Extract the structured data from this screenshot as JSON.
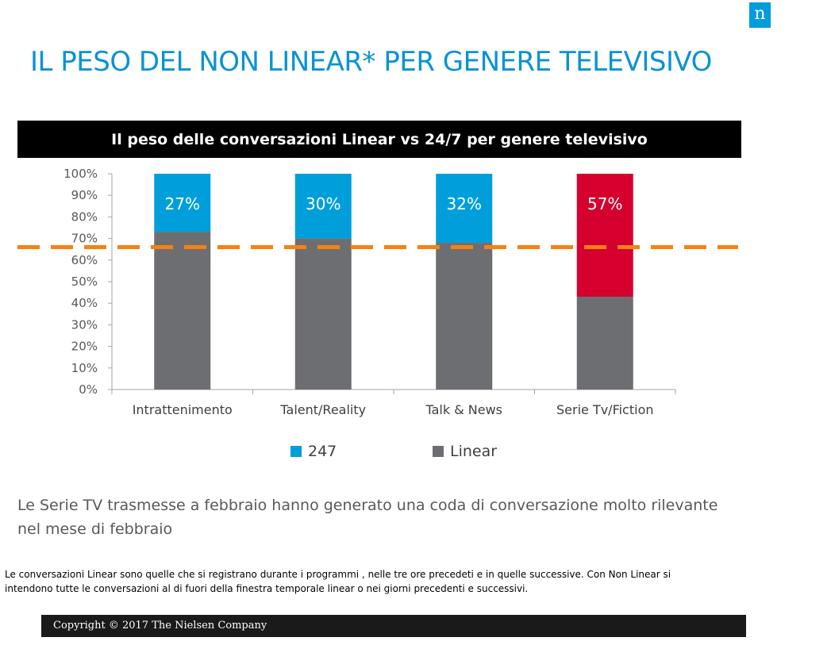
{
  "page": {
    "title": "IL PESO DEL NON LINEAR* PER GENERE TELEVISIVO",
    "logo_text": "n",
    "chart_header": "Il peso delle conversazioni Linear vs 24/7 per genere televisivo",
    "note": "Le Serie TV trasmesse a febbraio hanno generato una coda di conversazione molto rilevante  nel mese di febbraio",
    "footnote": "Le conversazioni Linear sono quelle che si registrano durante i programmi , nelle tre ore precedeti e in quelle successive. Con Non Linear si intendono tutte le conversazioni al di fuori della finestra temporale linear o nei giorni precedenti e successivi.",
    "footer": "Copyright © 2017 The Nielsen Company"
  },
  "colors": {
    "title": "#0a93d3",
    "series_247": "#009fdb",
    "series_247_highlight": "#d6002f",
    "series_linear": "#6d6e71",
    "reference_line": "#f7820f"
  },
  "chart_data": {
    "type": "bar",
    "stacked": true,
    "categories": [
      "Intrattenimento",
      "Talent/Reality",
      "Talk & News",
      "Serie Tv/Fiction"
    ],
    "series": [
      {
        "name": "Linear",
        "values": [
          73,
          70,
          68,
          43
        ]
      },
      {
        "name": "247",
        "values": [
          27,
          30,
          32,
          57
        ]
      }
    ],
    "data_labels": [
      "27%",
      "30%",
      "32%",
      "57%"
    ],
    "ylim": [
      0,
      100
    ],
    "yticks": [
      "0%",
      "10%",
      "20%",
      "30%",
      "40%",
      "50%",
      "60%",
      "70%",
      "80%",
      "90%",
      "100%"
    ],
    "reference_line": {
      "value": 66,
      "style": "dashed"
    },
    "legend": [
      "247",
      "Linear"
    ],
    "legend_position": "bottom"
  }
}
